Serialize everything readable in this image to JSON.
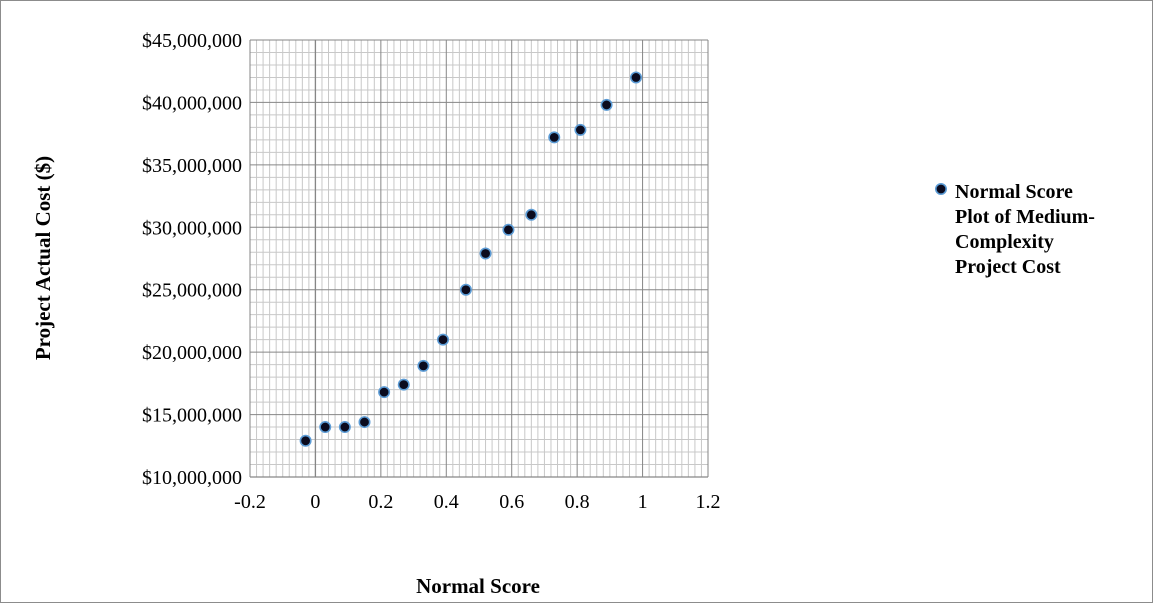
{
  "chart_data": {
    "type": "scatter",
    "title": "",
    "xlabel": "Normal Score",
    "ylabel": "Project Actual Cost ($)",
    "xlim": [
      -0.2,
      1.2
    ],
    "ylim": [
      10000000,
      45000000
    ],
    "x_ticks": [
      "-0.2",
      "0",
      "0.2",
      "0.4",
      "0.6",
      "0.8",
      "1",
      "1.2"
    ],
    "y_ticks": [
      "$10,000,000",
      "$15,000,000",
      "$20,000,000",
      "$25,000,000",
      "$30,000,000",
      "$35,000,000",
      "$40,000,000",
      "$45,000,000"
    ],
    "grid": true,
    "legend_position": "right",
    "series": [
      {
        "name": "Normal Score Plot of Medium-Complexity Project Cost",
        "legend_lines": [
          "Normal Score",
          "Plot of Medium-",
          "Complexity",
          "Project Cost"
        ],
        "marker_fill": "#0b0b1e",
        "marker_edge": "#5b9bd5",
        "points": [
          {
            "x": -0.03,
            "y": 12900000
          },
          {
            "x": 0.03,
            "y": 14000000
          },
          {
            "x": 0.09,
            "y": 14000000
          },
          {
            "x": 0.15,
            "y": 14400000
          },
          {
            "x": 0.21,
            "y": 16800000
          },
          {
            "x": 0.27,
            "y": 17400000
          },
          {
            "x": 0.33,
            "y": 18900000
          },
          {
            "x": 0.39,
            "y": 21000000
          },
          {
            "x": 0.46,
            "y": 25000000
          },
          {
            "x": 0.52,
            "y": 27900000
          },
          {
            "x": 0.59,
            "y": 29800000
          },
          {
            "x": 0.66,
            "y": 31000000
          },
          {
            "x": 0.73,
            "y": 37200000
          },
          {
            "x": 0.81,
            "y": 37800000
          },
          {
            "x": 0.89,
            "y": 39800000
          },
          {
            "x": 0.98,
            "y": 42000000
          }
        ]
      }
    ]
  }
}
